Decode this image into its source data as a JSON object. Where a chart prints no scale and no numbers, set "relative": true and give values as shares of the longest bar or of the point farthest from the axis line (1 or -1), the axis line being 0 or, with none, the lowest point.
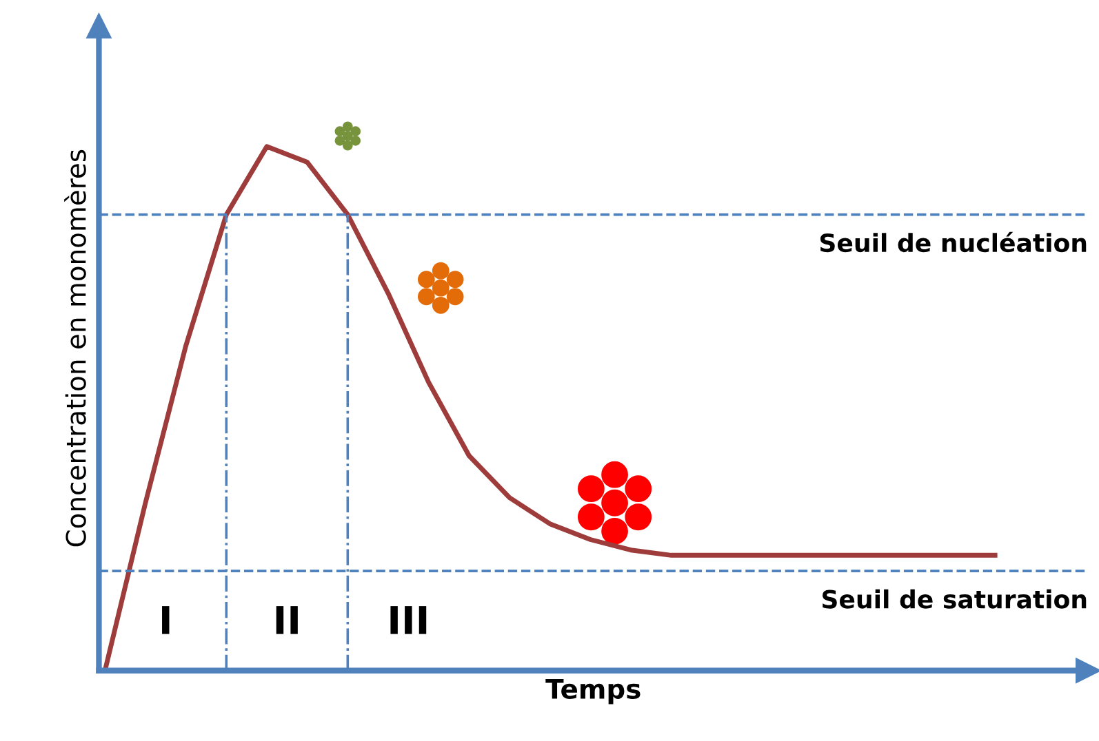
{
  "chart_data": {
    "type": "line",
    "relative": true,
    "xlabel": "Temps",
    "ylabel": "Concentration en monomères",
    "categories": [
      null,
      null,
      null,
      null,
      null,
      null,
      null,
      null,
      null,
      null,
      null,
      null,
      null,
      null,
      null,
      null,
      null,
      null,
      null,
      null,
      null,
      null,
      null
    ],
    "series": [
      {
        "color": "#9e3b3b",
        "values": [
          0,
          0.32,
          0.62,
          0.87,
          1,
          0.97,
          0.87,
          0.72,
          0.55,
          0.41,
          0.33,
          0.28,
          0.25,
          0.23,
          0.22,
          0.22,
          0.22,
          0.22,
          0.22,
          0.22,
          0.22,
          0.22,
          0.22
        ]
      }
    ],
    "ref_lines": [
      {
        "axis": "y",
        "value": 0.87,
        "label": "Seuil de nucléation",
        "color": "#4f81bd",
        "line_style": "dashed"
      },
      {
        "axis": "y",
        "value": 0.19,
        "label": "Seuil de saturation",
        "color": "#4f81bd",
        "line_style": "dashed"
      }
    ],
    "annotations": [
      "I",
      "II",
      "III"
    ],
    "marker": "none",
    "line_style": "solid"
  }
}
